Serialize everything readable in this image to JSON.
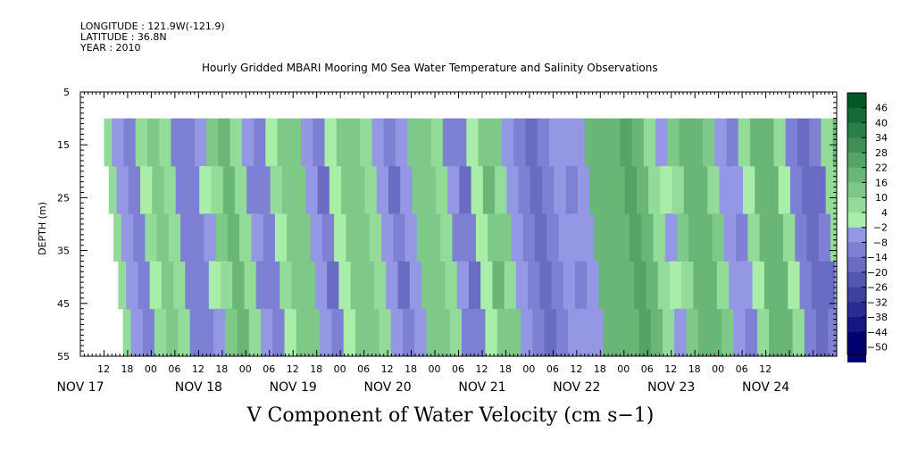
{
  "header": {
    "longitude": "LONGITUDE : 121.9W(-121.9)",
    "latitude": "LATITUDE : 36.8N",
    "year": "YEAR : 2010"
  },
  "colors": {
    "low": "#00007a",
    "mid_low": "#8a8fef",
    "mid_high": "#a0f0a0",
    "high": "#006020"
  },
  "chart_data": {
    "type": "heatmap",
    "title": "Hourly Gridded MBARI Mooring M0 Sea Water Temperature and Salinity Observations",
    "xlabel": "V Component of Water Velocity (cm s-1)",
    "ylabel": "DEPTH (m)",
    "yticks": [
      5,
      15,
      25,
      35,
      45,
      55
    ],
    "ylim": [
      5,
      55
    ],
    "y_inverted": true,
    "data_depth_range": [
      10,
      55
    ],
    "x_hour_ticks": [
      "12",
      "18",
      "00",
      "06",
      "12",
      "18",
      "00",
      "06",
      "12",
      "18",
      "00",
      "06",
      "12",
      "18",
      "00",
      "06",
      "12",
      "18",
      "00",
      "06",
      "12",
      "18",
      "00",
      "06",
      "12",
      "18",
      "00",
      "06",
      "12"
    ],
    "x_day_labels": [
      "NOV 17",
      "NOV 18",
      "NOV 19",
      "NOV 20",
      "NOV 21",
      "NOV 22",
      "NOV 23",
      "NOV 24"
    ],
    "x_range_hours": [
      "2010-11-17 12:00",
      "2010-11-25 12:00"
    ],
    "data_start": "2010-11-17 18:00",
    "colorbar_levels": [
      46,
      40,
      34,
      28,
      22,
      16,
      10,
      4,
      -2,
      -8,
      -14,
      -20,
      -26,
      -32,
      -38,
      -44,
      -50
    ],
    "colorbar_range": [
      -50,
      52
    ],
    "bands": [
      {
        "hour": 0,
        "value": 8
      },
      {
        "hour": 2,
        "value": -6
      },
      {
        "hour": 5,
        "value": -12
      },
      {
        "hour": 8,
        "value": 4
      },
      {
        "hour": 11,
        "value": 14
      },
      {
        "hour": 14,
        "value": 6
      },
      {
        "hour": 17,
        "value": -10
      },
      {
        "hour": 20,
        "value": -14
      },
      {
        "hour": 23,
        "value": -4
      },
      {
        "hour": 26,
        "value": 12
      },
      {
        "hour": 29,
        "value": 16
      },
      {
        "hour": 32,
        "value": 4
      },
      {
        "hour": 35,
        "value": -8
      },
      {
        "hour": 38,
        "value": -12
      },
      {
        "hour": 41,
        "value": 2
      },
      {
        "hour": 44,
        "value": 14
      },
      {
        "hour": 47,
        "value": 10
      },
      {
        "hour": 50,
        "value": -6
      },
      {
        "hour": 53,
        "value": -12
      },
      {
        "hour": 56,
        "value": -2
      },
      {
        "hour": 59,
        "value": 10
      },
      {
        "hour": 62,
        "value": 14
      },
      {
        "hour": 65,
        "value": 6
      },
      {
        "hour": 68,
        "value": -8
      },
      {
        "hour": 71,
        "value": -14
      },
      {
        "hour": 74,
        "value": -6
      },
      {
        "hour": 77,
        "value": 12
      },
      {
        "hour": 80,
        "value": 14
      },
      {
        "hour": 83,
        "value": 4
      },
      {
        "hour": 86,
        "value": -10
      },
      {
        "hour": 89,
        "value": -14
      },
      {
        "hour": 92,
        "value": 2
      },
      {
        "hour": 95,
        "value": 14
      },
      {
        "hour": 98,
        "value": 10
      },
      {
        "hour": 101,
        "value": -4
      },
      {
        "hour": 104,
        "value": -12
      },
      {
        "hour": 107,
        "value": -16
      },
      {
        "hour": 110,
        "value": -14
      },
      {
        "hour": 113,
        "value": -6
      },
      {
        "hour": 116,
        "value": -8
      },
      {
        "hour": 119,
        "value": -6
      },
      {
        "hour": 122,
        "value": 16
      },
      {
        "hour": 125,
        "value": 20
      },
      {
        "hour": 128,
        "value": 18
      },
      {
        "hour": 131,
        "value": 22
      },
      {
        "hour": 134,
        "value": 20
      },
      {
        "hour": 137,
        "value": 8
      },
      {
        "hour": 140,
        "value": -4
      },
      {
        "hour": 143,
        "value": 10
      },
      {
        "hour": 146,
        "value": 16
      },
      {
        "hour": 149,
        "value": 18
      },
      {
        "hour": 152,
        "value": 10
      },
      {
        "hour": 155,
        "value": -6
      },
      {
        "hour": 158,
        "value": -10
      },
      {
        "hour": 161,
        "value": 6
      },
      {
        "hour": 164,
        "value": 16
      },
      {
        "hour": 167,
        "value": 18
      },
      {
        "hour": 170,
        "value": 4
      },
      {
        "hour": 173,
        "value": -12
      },
      {
        "hour": 176,
        "value": -18
      },
      {
        "hour": 179,
        "value": -14
      },
      {
        "hour": 182,
        "value": 4
      },
      {
        "hour": 185,
        "value": 16
      },
      {
        "hour": 188,
        "value": 14
      },
      {
        "hour": 191,
        "value": -4
      },
      {
        "hour": 194,
        "value": -10
      },
      {
        "hour": 197,
        "value": 6
      },
      {
        "hour": 198,
        "value": 12
      }
    ]
  },
  "footer": {
    "title": "V Component of Water Velocity (cm s−1)"
  }
}
